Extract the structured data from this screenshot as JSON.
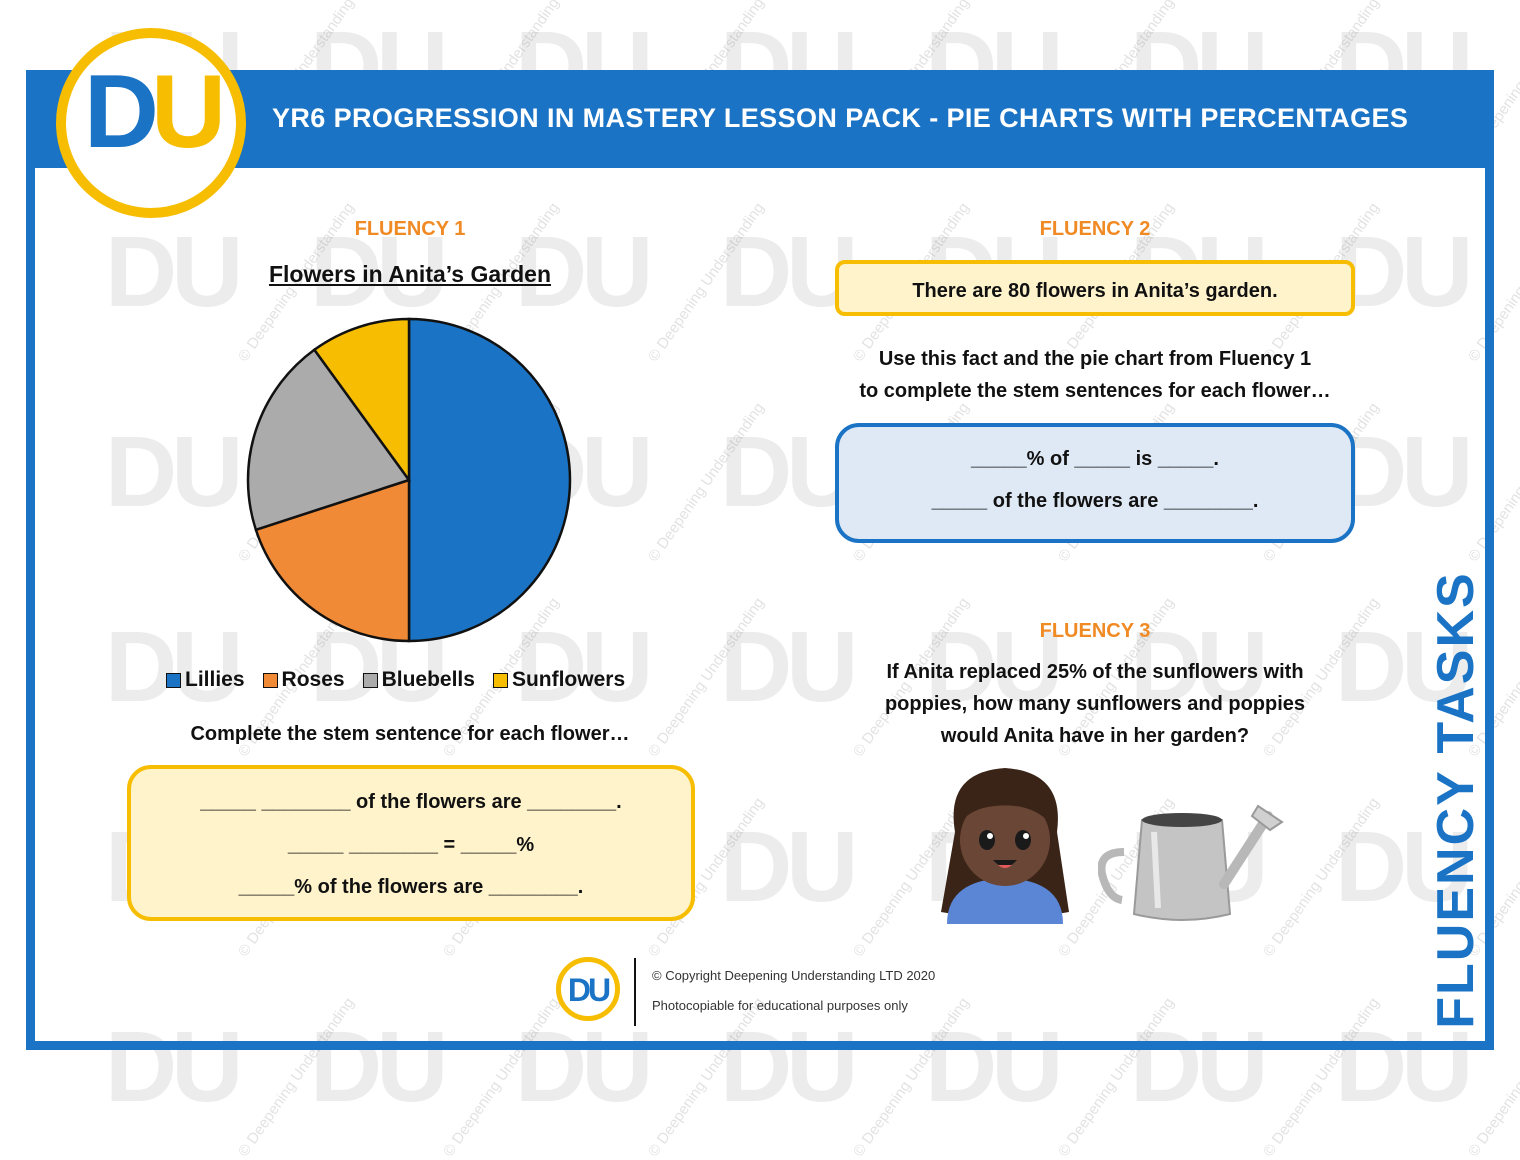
{
  "header": {
    "title": "YR6 PROGRESSION IN MASTERY LESSON PACK - PIE CHARTS WITH PERCENTAGES",
    "logo_letter_d": "D",
    "logo_letter_u": "U"
  },
  "colors": {
    "brand_blue": "#1a73c4",
    "brand_yellow": "#f7bd00",
    "heading_orange": "#f08a24"
  },
  "watermark": {
    "logo_text": "DU",
    "line_text": "© Deepening Understanding"
  },
  "fluency1": {
    "heading": "FLUENCY 1",
    "chart_title": "Flowers in Anita’s Garden",
    "prompt": "Complete the stem sentence for each flower…",
    "stems": [
      "_____ ________ of the flowers are ________.",
      "_____ ________ = _____%",
      "_____% of the flowers are ________."
    ]
  },
  "chart_data": {
    "type": "pie",
    "title": "Flowers in Anita’s Garden",
    "labels": [
      "Lillies",
      "Roses",
      "Bluebells",
      "Sunflowers"
    ],
    "values": [
      50,
      20,
      20,
      10
    ],
    "colors": [
      "#1a73c4",
      "#f08a36",
      "#ababab",
      "#f7bd00"
    ],
    "legend_position": "bottom"
  },
  "fluency2": {
    "heading": "FLUENCY 2",
    "fact": "There are 80 flowers in Anita’s garden.",
    "instruction_line1": "Use this fact and the pie chart from Fluency 1",
    "instruction_line2": "to complete the stem sentences for each flower…",
    "stems": [
      "_____% of _____ is _____.",
      "_____ of the flowers are ________."
    ]
  },
  "fluency3": {
    "heading": "FLUENCY 3",
    "question_line1": "If Anita replaced 25% of the sunflowers with",
    "question_line2": "poppies, how many sunflowers and poppies",
    "question_line3": "would Anita have in her garden?"
  },
  "side_label": "FLUENCY TASKS",
  "footer": {
    "logo_text": "DU",
    "copyright": "© Copyright Deepening Understanding LTD 2020",
    "note": "Photocopiable for educational purposes only"
  }
}
